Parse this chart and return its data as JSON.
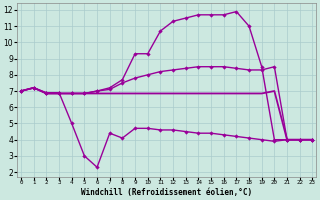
{
  "xlabel": "Windchill (Refroidissement éolien,°C)",
  "background_color": "#cce8e0",
  "grid_color": "#aacccc",
  "line_color": "#990099",
  "x_ticks": [
    0,
    1,
    2,
    3,
    4,
    5,
    6,
    7,
    8,
    9,
    10,
    11,
    12,
    13,
    14,
    15,
    16,
    17,
    18,
    19,
    20,
    21,
    22,
    23
  ],
  "y_ticks": [
    2,
    3,
    4,
    5,
    6,
    7,
    8,
    9,
    10,
    11,
    12
  ],
  "ylim": [
    1.7,
    12.4
  ],
  "xlim": [
    0,
    23
  ],
  "line1_x": [
    0,
    1,
    2,
    3,
    4,
    5,
    6,
    7,
    8,
    9,
    10,
    11,
    12,
    13,
    14,
    15,
    16,
    17,
    18,
    19,
    20,
    21,
    22,
    23
  ],
  "line1_y": [
    7.0,
    7.2,
    6.9,
    6.9,
    5.0,
    3.0,
    2.3,
    4.4,
    4.1,
    4.7,
    4.7,
    4.6,
    4.6,
    4.5,
    4.4,
    4.4,
    4.3,
    4.2,
    4.1,
    4.0,
    3.9,
    4.0,
    4.0,
    4.0
  ],
  "line2_x": [
    0,
    1,
    2,
    3,
    4,
    5,
    6,
    7,
    8,
    9,
    10,
    11,
    12,
    13,
    14,
    15,
    16,
    17,
    18,
    19,
    20,
    21,
    22,
    23
  ],
  "line2_y": [
    7.0,
    7.2,
    6.85,
    6.85,
    6.85,
    6.85,
    6.85,
    6.85,
    6.85,
    6.85,
    6.85,
    6.85,
    6.85,
    6.85,
    6.85,
    6.85,
    6.85,
    6.85,
    6.85,
    6.85,
    7.0,
    4.0,
    4.0,
    4.0
  ],
  "line3_x": [
    0,
    1,
    2,
    3,
    4,
    5,
    6,
    7,
    8,
    9,
    10,
    11,
    12,
    13,
    14,
    15,
    16,
    17,
    18,
    19,
    20,
    21,
    22,
    23
  ],
  "line3_y": [
    7.0,
    7.2,
    6.85,
    6.85,
    6.85,
    6.85,
    7.0,
    7.1,
    7.5,
    7.8,
    8.0,
    8.2,
    8.3,
    8.4,
    8.5,
    8.5,
    8.5,
    8.4,
    8.3,
    8.3,
    8.5,
    4.0,
    4.0,
    4.0
  ],
  "line4_x": [
    0,
    1,
    2,
    3,
    4,
    5,
    6,
    7,
    8,
    9,
    10,
    11,
    12,
    13,
    14,
    15,
    16,
    17,
    18,
    19,
    20,
    21,
    22,
    23
  ],
  "line4_y": [
    7.0,
    7.2,
    6.85,
    6.85,
    6.85,
    6.85,
    7.0,
    7.2,
    7.7,
    9.3,
    9.3,
    10.7,
    11.3,
    11.5,
    11.7,
    11.7,
    11.7,
    11.9,
    11.0,
    8.5,
    4.0,
    4.0,
    4.0,
    4.0
  ]
}
